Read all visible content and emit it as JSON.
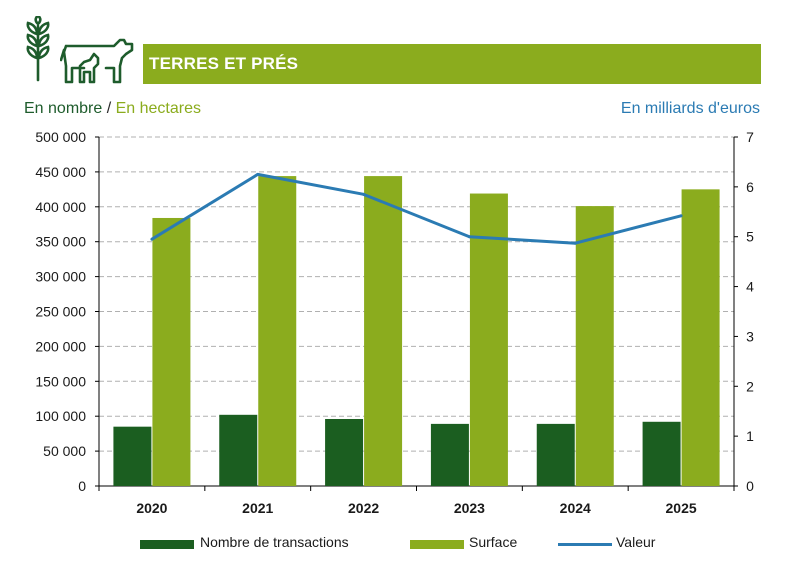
{
  "header": {
    "title": "TERRES ET PRÉS",
    "wheat_icon": "wheat-icon",
    "cow_icon": "cow-calf-icon",
    "banner_color": "#8bac1e"
  },
  "axis_units": {
    "left_part1": "En nombre",
    "separator": " / ",
    "left_part2": "En hectares",
    "right": "En milliards d'euros"
  },
  "colors": {
    "transactions": "#1b5e20",
    "surface": "#8bac1e",
    "valeur": "#2b7bb3",
    "grid": "#b0b0b0"
  },
  "chart_data": {
    "type": "bar",
    "categories": [
      "2020",
      "2021",
      "2022",
      "2023",
      "2024",
      "2025"
    ],
    "series": [
      {
        "name": "Nombre de transactions",
        "type": "bar",
        "axis": "left",
        "values": [
          85000,
          102000,
          96000,
          89000,
          89000,
          92000
        ]
      },
      {
        "name": "Surface",
        "type": "bar",
        "axis": "left",
        "values": [
          384000,
          444000,
          444000,
          419000,
          401000,
          425000
        ]
      },
      {
        "name": "Valeur",
        "type": "line",
        "axis": "right",
        "values": [
          4.95,
          6.25,
          5.85,
          5.0,
          4.87,
          5.42
        ]
      }
    ],
    "ylim_left": [
      0,
      500000
    ],
    "yticks_left": [
      "0",
      "50 000",
      "100 000",
      "150 000",
      "200 000",
      "250 000",
      "300 000",
      "350 000",
      "400 000",
      "450 000",
      "500 000"
    ],
    "ylim_right": [
      0,
      7
    ],
    "yticks_right": [
      "0",
      "1",
      "2",
      "3",
      "4",
      "5",
      "6",
      "7"
    ],
    "grid": true,
    "legend_position": "bottom"
  }
}
